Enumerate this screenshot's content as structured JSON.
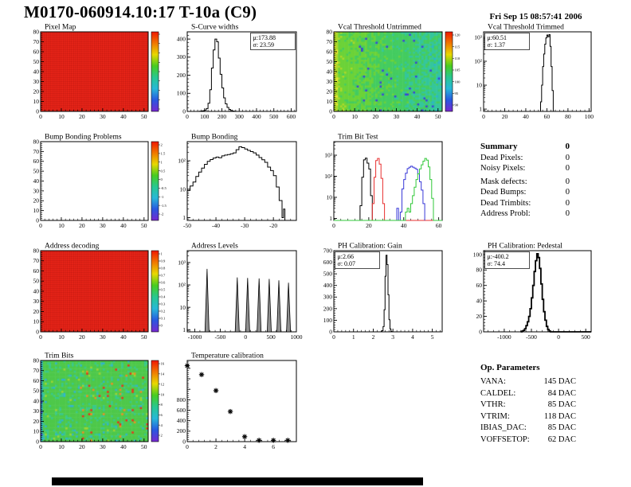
{
  "header": {
    "title": "M0170-060914.10:17 T-10a (C9)",
    "datetime": "Fri Sep 15 08:57:41 2006"
  },
  "summary": {
    "title": "Summary",
    "total": "0",
    "rows": [
      {
        "label": "Dead Pixels:",
        "value": "0"
      },
      {
        "label": "Noisy Pixels:",
        "value": "0"
      },
      {
        "label": "Mask defects:",
        "value": "0"
      },
      {
        "label": "Dead Bumps:",
        "value": "0"
      },
      {
        "label": "Dead Trimbits:",
        "value": "0"
      },
      {
        "label": "Address Probl:",
        "value": "0"
      }
    ]
  },
  "op_parameters": {
    "title": "Op. Parameters",
    "rows": [
      {
        "label": "VANA:",
        "value": "145 DAC"
      },
      {
        "label": "CALDEL:",
        "value": "84 DAC"
      },
      {
        "label": "VTHR:",
        "value": "85 DAC"
      },
      {
        "label": "VTRIM:",
        "value": "118 DAC"
      },
      {
        "label": "IBIAS_DAC:",
        "value": "85 DAC"
      },
      {
        "label": "VOFFSETOP:",
        "value": "62 DAC"
      }
    ]
  },
  "colors": {
    "rainbow": [
      "#f01800",
      "#f07800",
      "#e8d800",
      "#48cc20",
      "#28c890",
      "#28b8d8",
      "#2858e0",
      "#7828d0"
    ],
    "hist_black": "#000000",
    "hist_red": "#e83030",
    "hist_blue": "#3838d8",
    "hist_green": "#30c838",
    "map_red": "#f0281c"
  },
  "chart_data": [
    {
      "id": "pixel-map",
      "type": "heatmap",
      "title": "Pixel Map",
      "style": "solid-red",
      "fill": "#f0281c",
      "grid": "#a01008",
      "xlim": [
        0,
        52
      ],
      "ylim": [
        0,
        80
      ],
      "xticks": [
        0,
        10,
        20,
        30,
        40,
        50
      ],
      "yticks": [
        0,
        10,
        20,
        30,
        40,
        50,
        60,
        70,
        80
      ],
      "colorbar": {
        "labels": []
      }
    },
    {
      "id": "s-curve-widths",
      "type": "hist",
      "title": "S-Curve widths",
      "color": "#000000",
      "xlim": [
        0,
        630
      ],
      "ylim": [
        0,
        440
      ],
      "xticks": [
        0,
        100,
        200,
        300,
        400,
        500,
        600
      ],
      "yticks": [
        0,
        100,
        200,
        300,
        400
      ],
      "stats": {
        "side": "right",
        "lines": [
          "μ:173.88",
          "σ: 23.59"
        ]
      },
      "bins": [
        [
          40,
          0
        ],
        [
          60,
          0
        ],
        [
          70,
          1
        ],
        [
          80,
          2
        ],
        [
          90,
          4
        ],
        [
          100,
          7
        ],
        [
          110,
          16
        ],
        [
          120,
          45
        ],
        [
          130,
          120
        ],
        [
          140,
          240
        ],
        [
          150,
          340
        ],
        [
          160,
          400
        ],
        [
          170,
          385
        ],
        [
          180,
          295
        ],
        [
          190,
          205
        ],
        [
          200,
          130
        ],
        [
          210,
          75
        ],
        [
          220,
          42
        ],
        [
          230,
          22
        ],
        [
          240,
          11
        ],
        [
          250,
          5
        ],
        [
          260,
          2
        ],
        [
          270,
          1
        ],
        [
          280,
          0
        ],
        [
          630,
          0
        ]
      ]
    },
    {
      "id": "vcal-threshold-untrimmed",
      "type": "heatmap",
      "title": "Vcal Threshold Untrimmed",
      "style": "noise",
      "noise": {
        "base": 108.5,
        "xslope": -0.18,
        "sd": 4.0,
        "left_boost": 5,
        "dot_chance": 0.025,
        "dot_value": 88
      },
      "palette": {
        "thresholds": [
          115,
          110,
          105.5,
          101,
          97,
          92.5
        ],
        "colors": [
          "#e8e430",
          "#acd828",
          "#6cd238",
          "#44cc60",
          "#34c69c",
          "#2cb4cc",
          "#3a44d8"
        ]
      },
      "xlim": [
        0,
        52
      ],
      "ylim": [
        0,
        80
      ],
      "xticks": [
        0,
        10,
        20,
        30,
        40,
        50
      ],
      "yticks": [
        0,
        10,
        20,
        30,
        40,
        50,
        60,
        70,
        80
      ],
      "colorbar": {
        "labels": [
          "120",
          "115",
          "110",
          "105",
          "100",
          "95",
          "90"
        ]
      }
    },
    {
      "id": "vcal-threshold-trimmed",
      "type": "hist",
      "title": "Vcal Threshold Trimmed",
      "color": "#000000",
      "ylog": true,
      "xlim": [
        0,
        102
      ],
      "ylim": [
        0.8,
        1700
      ],
      "xticks": [
        0,
        20,
        40,
        60,
        80,
        100
      ],
      "stats": {
        "side": "left",
        "lines": [
          "μ:60.51",
          "σ: 1.37"
        ]
      },
      "bins": [
        [
          52,
          0
        ],
        [
          54,
          2
        ],
        [
          55,
          10
        ],
        [
          56,
          60
        ],
        [
          57,
          200
        ],
        [
          58,
          520
        ],
        [
          59,
          950
        ],
        [
          60,
          1250
        ],
        [
          61,
          1050
        ],
        [
          62,
          1300
        ],
        [
          63,
          420
        ],
        [
          64,
          60
        ],
        [
          65,
          6
        ],
        [
          66,
          0
        ],
        [
          102,
          0
        ]
      ]
    },
    {
      "id": "bump-bonding-problems",
      "type": "heatmap",
      "title": "Bump Bonding Problems",
      "style": "empty",
      "xlim": [
        0,
        52
      ],
      "ylim": [
        0,
        80
      ],
      "xticks": [
        0,
        10,
        20,
        30,
        40,
        50
      ],
      "yticks": [
        0,
        10,
        20,
        30,
        40,
        50,
        60,
        70,
        80
      ],
      "colorbar": {
        "labels": [
          "2",
          "1.5",
          "1",
          "0.5",
          "0",
          "-0.5",
          "-1",
          "-1.5",
          "-2"
        ]
      }
    },
    {
      "id": "bump-bonding",
      "type": "hist",
      "title": "Bump Bonding",
      "color": "#000000",
      "ylog": true,
      "xlim": [
        -50,
        -12
      ],
      "ylim": [
        0.8,
        470
      ],
      "xticks": [
        -50,
        -40,
        -30,
        -20
      ],
      "bins": [
        [
          -50,
          9
        ],
        [
          -49,
          13
        ],
        [
          -48,
          18
        ],
        [
          -47,
          28
        ],
        [
          -46,
          40
        ],
        [
          -45,
          55
        ],
        [
          -44,
          75
        ],
        [
          -43,
          95
        ],
        [
          -42,
          110
        ],
        [
          -41,
          125
        ],
        [
          -40,
          135
        ],
        [
          -39,
          128
        ],
        [
          -38,
          148
        ],
        [
          -37,
          158
        ],
        [
          -36,
          165
        ],
        [
          -35,
          175
        ],
        [
          -34,
          190
        ],
        [
          -33,
          245
        ],
        [
          -32,
          310
        ],
        [
          -31,
          290
        ],
        [
          -30,
          260
        ],
        [
          -29,
          232
        ],
        [
          -28,
          210
        ],
        [
          -27,
          190
        ],
        [
          -26,
          158
        ],
        [
          -25,
          130
        ],
        [
          -24,
          108
        ],
        [
          -23,
          88
        ],
        [
          -22,
          60
        ],
        [
          -21,
          45
        ],
        [
          -20,
          30
        ],
        [
          -19,
          12
        ],
        [
          -18,
          4
        ],
        [
          -17,
          1
        ],
        [
          -16.5,
          2
        ],
        [
          -16,
          0
        ],
        [
          -12,
          0
        ]
      ]
    },
    {
      "id": "trim-bit-test",
      "type": "multihist",
      "title": "Trim Bit Test",
      "ylog": true,
      "xlim": [
        0,
        62
      ],
      "ylim": [
        0.8,
        4400
      ],
      "xticks": [
        0,
        20,
        40,
        60
      ],
      "series": [
        {
          "name": "trim-bit-0",
          "color": "#000000",
          "bins": [
            [
              14,
              0
            ],
            [
              15,
              4
            ],
            [
              16,
              90
            ],
            [
              17,
              600
            ],
            [
              18,
              720
            ],
            [
              19,
              420
            ],
            [
              20,
              220
            ],
            [
              21,
              12
            ],
            [
              22,
              0
            ]
          ]
        },
        {
          "name": "trim-bit-1",
          "color": "#e83030",
          "bins": [
            [
              21,
              0
            ],
            [
              22,
              5
            ],
            [
              23,
              90
            ],
            [
              24,
              560
            ],
            [
              25,
              700
            ],
            [
              26,
              380
            ],
            [
              27,
              80
            ],
            [
              28,
              5
            ],
            [
              29,
              0
            ],
            [
              62,
              0
            ]
          ]
        },
        {
          "name": "trim-bit-2",
          "color": "#3838d8",
          "bins": [
            [
              35,
              0
            ],
            [
              36,
              3
            ],
            [
              37,
              0
            ],
            [
              38,
              2
            ],
            [
              39,
              25
            ],
            [
              40,
              70
            ],
            [
              41,
              140
            ],
            [
              42,
              230
            ],
            [
              43,
              270
            ],
            [
              44,
              300
            ],
            [
              45,
              270
            ],
            [
              46,
              245
            ],
            [
              47,
              215
            ],
            [
              48,
              130
            ],
            [
              49,
              55
            ],
            [
              50,
              22
            ],
            [
              51,
              5
            ],
            [
              52,
              0
            ]
          ]
        },
        {
          "name": "trim-bit-3",
          "color": "#30c838",
          "bins": [
            [
              0,
              0
            ],
            [
              41,
              2
            ],
            [
              42,
              3
            ],
            [
              43,
              2
            ],
            [
              44,
              5
            ],
            [
              45,
              12
            ],
            [
              46,
              30
            ],
            [
              47,
              70
            ],
            [
              48,
              130
            ],
            [
              49,
              225
            ],
            [
              50,
              350
            ],
            [
              51,
              520
            ],
            [
              52,
              700
            ],
            [
              53,
              580
            ],
            [
              54,
              280
            ],
            [
              55,
              70
            ],
            [
              56,
              9
            ],
            [
              57,
              0
            ],
            [
              62,
              0
            ]
          ]
        }
      ]
    },
    {
      "id": "address-decoding",
      "type": "heatmap",
      "title": "Address decoding",
      "style": "solid-red",
      "fill": "#f0281c",
      "grid": "#a01008",
      "xlim": [
        0,
        52
      ],
      "ylim": [
        0,
        80
      ],
      "xticks": [
        0,
        10,
        20,
        30,
        40,
        50
      ],
      "yticks": [
        0,
        10,
        20,
        30,
        40,
        50,
        60,
        70,
        80
      ],
      "colorbar": {
        "labels": [
          "1",
          "0.9",
          "0.8",
          "0.7",
          "0.6",
          "0.5",
          "0.4",
          "0.3",
          "0.2",
          "0.1",
          "0"
        ]
      }
    },
    {
      "id": "address-levels",
      "type": "spikes",
      "title": "Address Levels",
      "ylog": true,
      "xlim": [
        -1150,
        1000
      ],
      "ylim": [
        0.8,
        3400
      ],
      "xticks": [
        -1000,
        -500,
        0,
        500,
        1000
      ],
      "halfwidth": 40,
      "spikes": [
        [
          -760,
          520
        ],
        [
          -165,
          215
        ],
        [
          40,
          205
        ],
        [
          265,
          195
        ],
        [
          465,
          185
        ],
        [
          655,
          160
        ],
        [
          845,
          125
        ]
      ]
    },
    {
      "id": "ph-calibration-gain",
      "type": "hist",
      "title": "PH Calibration: Gain",
      "color": "#000000",
      "xlim": [
        0,
        5.5
      ],
      "ylim": [
        0,
        700
      ],
      "xticks": [
        0,
        1,
        2,
        3,
        4,
        5
      ],
      "yticks": [
        0,
        100,
        200,
        300,
        400,
        500,
        600,
        700
      ],
      "stats": {
        "side": "left",
        "lines": [
          "μ:2.66",
          "σ: 0.07"
        ]
      },
      "bins": [
        [
          2.35,
          0
        ],
        [
          2.4,
          2
        ],
        [
          2.45,
          10
        ],
        [
          2.5,
          45
        ],
        [
          2.55,
          190
        ],
        [
          2.6,
          480
        ],
        [
          2.65,
          660
        ],
        [
          2.7,
          580
        ],
        [
          2.75,
          320
        ],
        [
          2.8,
          105
        ],
        [
          2.85,
          25
        ],
        [
          2.9,
          4
        ],
        [
          2.95,
          0
        ],
        [
          5.5,
          0
        ]
      ]
    },
    {
      "id": "ph-calibration-pedestal",
      "type": "hist",
      "title": "PH Calibration: Pedestal",
      "color": "#000000",
      "lw": 1.8,
      "xlim": [
        -1380,
        600
      ],
      "ylim": [
        0,
        105
      ],
      "xticks": [
        -1000,
        -500,
        0,
        500
      ],
      "yticks": [
        0,
        20,
        40,
        60,
        80,
        100
      ],
      "stats": {
        "side": "left",
        "lines": [
          "μ:-400.2",
          "σ: 74.4"
        ]
      },
      "bins": [
        [
          -700,
          0
        ],
        [
          -675,
          1
        ],
        [
          -650,
          2
        ],
        [
          -625,
          4
        ],
        [
          -600,
          8
        ],
        [
          -575,
          13
        ],
        [
          -550,
          20
        ],
        [
          -525,
          30
        ],
        [
          -500,
          44
        ],
        [
          -475,
          60
        ],
        [
          -450,
          78
        ],
        [
          -425,
          92
        ],
        [
          -400,
          101
        ],
        [
          -375,
          96
        ],
        [
          -350,
          82
        ],
        [
          -325,
          62
        ],
        [
          -300,
          42
        ],
        [
          -275,
          26
        ],
        [
          -250,
          15
        ],
        [
          -225,
          7
        ],
        [
          -200,
          3
        ],
        [
          -175,
          1
        ],
        [
          -150,
          0
        ],
        [
          600,
          0
        ]
      ]
    },
    {
      "id": "trim-bits",
      "type": "heatmap",
      "title": "Trim Bits",
      "style": "noise",
      "noise": {
        "base": 10,
        "sd": 1.5,
        "orange_chance": 0.03,
        "cyan_chance": 0.08
      },
      "palette": {
        "thresholds": [
          16,
          14.3,
          12.8,
          11.2,
          9.2,
          7.8,
          6.2
        ],
        "colors": [
          "#e83018",
          "#f08c20",
          "#d8d028",
          "#9cd430",
          "#4ec84a",
          "#38c88c",
          "#30b4cc",
          "#3a52dc"
        ]
      },
      "xlim": [
        0,
        52
      ],
      "ylim": [
        0,
        80
      ],
      "xticks": [
        0,
        10,
        20,
        30,
        40,
        50
      ],
      "yticks": [
        0,
        10,
        20,
        30,
        40,
        50,
        60,
        70,
        80
      ],
      "colorbar": {
        "labels": [
          "16",
          "14",
          "12",
          "10",
          "8",
          "6",
          "4",
          "2"
        ]
      }
    },
    {
      "id": "temperature-calibration",
      "type": "scatter",
      "title": "Temperature calibration",
      "marker": "star",
      "xlim": [
        0,
        7.6
      ],
      "ylim": [
        0,
        1550
      ],
      "xticks": [
        0,
        2,
        4,
        6
      ],
      "yticks": [
        0,
        200,
        400,
        600,
        800
      ],
      "yticks_unlabeled": [
        1000,
        1200,
        1400
      ],
      "points": [
        [
          0,
          1450
        ],
        [
          1,
          1280
        ],
        [
          2,
          975
        ],
        [
          3,
          575
        ],
        [
          4,
          95
        ],
        [
          5,
          25
        ],
        [
          6,
          25
        ],
        [
          7,
          25
        ]
      ]
    }
  ]
}
